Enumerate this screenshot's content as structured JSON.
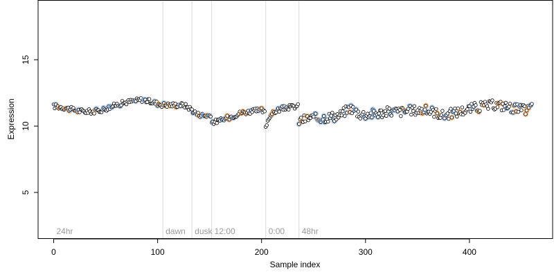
{
  "chart_data": {
    "type": "scatter",
    "title": "",
    "xlabel": "Sample index",
    "ylabel": "Expression",
    "xlim": [
      -15,
      480
    ],
    "ylim": [
      1.5,
      19.5
    ],
    "xticks": [
      0,
      100,
      200,
      300,
      400
    ],
    "yticks": [
      5,
      10,
      15
    ],
    "grid": false,
    "point_fill": "#ffffff",
    "point_stroke": "#000000",
    "highlight_colors": {
      "blue": "#8fb4e3",
      "orange": "#f0a860"
    },
    "phase_line_color": "#d9d9d9",
    "phases": [
      {
        "label": "24hr",
        "x": 0
      },
      {
        "label": "dawn",
        "x": 105
      },
      {
        "label": "dusk",
        "x": 133
      },
      {
        "label": "12:00",
        "x": 152
      },
      {
        "label": "0:00",
        "x": 204
      },
      {
        "label": "48hr",
        "x": 236
      }
    ],
    "trend": [
      [
        0,
        11.5
      ],
      [
        10,
        11.4
      ],
      [
        20,
        11.2
      ],
      [
        30,
        11.1
      ],
      [
        40,
        11.1
      ],
      [
        50,
        11.3
      ],
      [
        60,
        11.6
      ],
      [
        70,
        11.8
      ],
      [
        85,
        12.0
      ],
      [
        95,
        11.8
      ],
      [
        105,
        11.6
      ],
      [
        115,
        11.6
      ],
      [
        125,
        11.6
      ],
      [
        132,
        11.3
      ],
      [
        138,
        10.9
      ],
      [
        145,
        10.8
      ],
      [
        150,
        10.8
      ],
      [
        152,
        10.3
      ],
      [
        160,
        10.4
      ],
      [
        170,
        10.7
      ],
      [
        180,
        11.0
      ],
      [
        190,
        11.1
      ],
      [
        200,
        11.2
      ],
      [
        203,
        11.0
      ],
      [
        204,
        10.0
      ],
      [
        208,
        10.8
      ],
      [
        215,
        11.2
      ],
      [
        225,
        11.4
      ],
      [
        235,
        11.5
      ],
      [
        236,
        10.4
      ],
      [
        245,
        10.6
      ],
      [
        255,
        10.6
      ],
      [
        265,
        10.7
      ],
      [
        275,
        10.8
      ],
      [
        285,
        11.4
      ],
      [
        295,
        10.9
      ],
      [
        305,
        10.9
      ],
      [
        315,
        11.0
      ],
      [
        325,
        11.1
      ],
      [
        335,
        11.1
      ],
      [
        345,
        11.2
      ],
      [
        355,
        11.2
      ],
      [
        365,
        11.1
      ],
      [
        375,
        10.8
      ],
      [
        385,
        11.0
      ],
      [
        395,
        11.2
      ],
      [
        405,
        11.4
      ],
      [
        415,
        11.5
      ],
      [
        425,
        11.6
      ],
      [
        435,
        11.5
      ],
      [
        445,
        11.3
      ],
      [
        455,
        11.2
      ],
      [
        460,
        11.5
      ]
    ],
    "n_points": 461
  }
}
